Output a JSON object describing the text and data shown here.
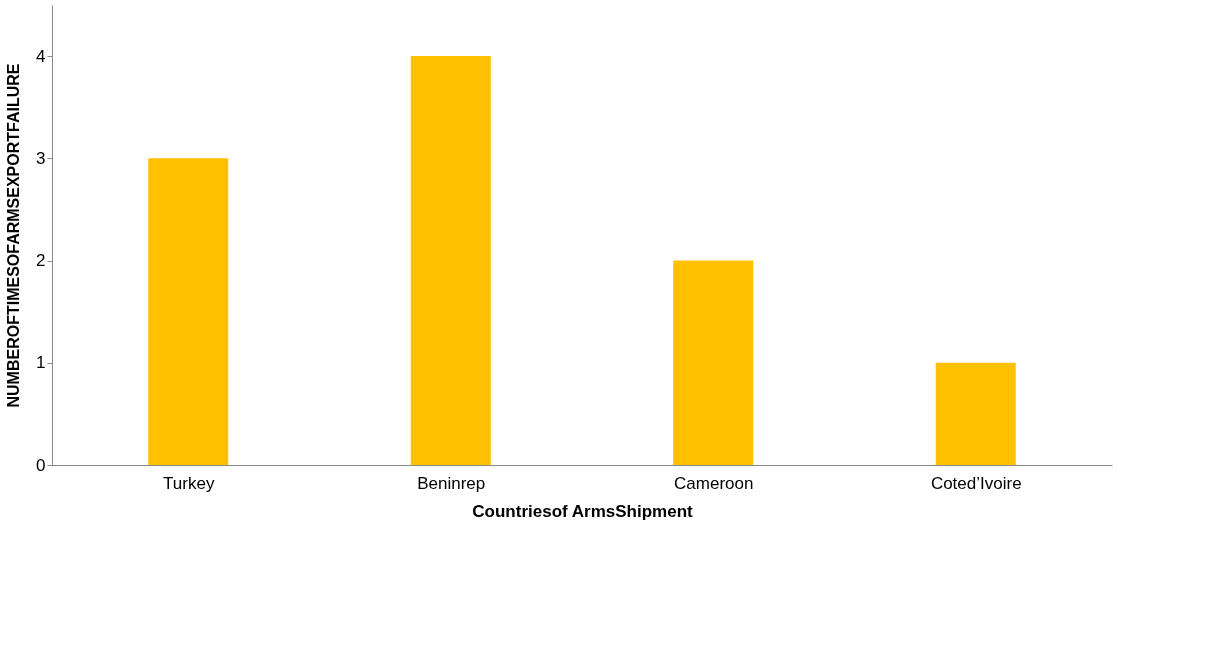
{
  "chart_data": {
    "type": "bar",
    "xlabel": "Countriesof ArmsShipment",
    "ylabel": "NUMBEROFTIMESOFARMSEXPORTFAILURE",
    "categories": [
      "Turkey",
      "Beninrep",
      "Cameroon",
      "Coted’Ivoire"
    ],
    "values": [
      3,
      4,
      2,
      1
    ],
    "color": "#ffc000",
    "ylim": [
      0,
      4.5
    ],
    "yticks": [
      0,
      1,
      2,
      3,
      4
    ],
    "grid": false
  }
}
